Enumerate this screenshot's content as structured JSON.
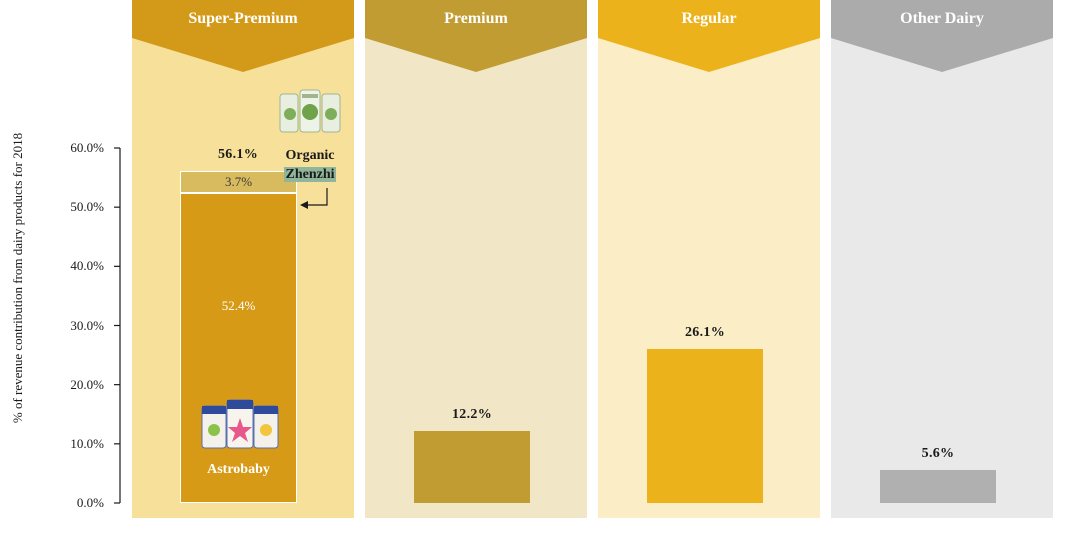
{
  "chart_data": {
    "type": "bar",
    "ylabel": "% of revenue contribution from dairy products for 2018",
    "ylim": [
      0,
      60
    ],
    "yticks": [
      "0.0%",
      "10.0%",
      "20.0%",
      "30.0%",
      "40.0%",
      "50.0%",
      "60.0%"
    ],
    "categories": [
      "Super-Premium",
      "Premium",
      "Regular",
      "Other Dairy"
    ],
    "totals": [
      56.1,
      12.2,
      26.1,
      5.6
    ],
    "total_labels": [
      "56.1%",
      "12.2%",
      "26.1%",
      "5.6%"
    ],
    "stack": {
      "category": "Super-Premium",
      "segments": [
        {
          "name": "Astrobaby",
          "value": 52.4,
          "label": "52.4%"
        },
        {
          "name": "Organic Zhenzhi",
          "value": 3.7,
          "label": "3.7%"
        }
      ]
    },
    "colors": {
      "headers": [
        "#d39a19",
        "#c09c32",
        "#ebb21c",
        "#ababab"
      ],
      "backgrounds": [
        "#f7e19a",
        "#f1e6c5",
        "#fbedc5",
        "#e9e9e9"
      ],
      "bars": [
        "#d69a16",
        "#c19c33",
        "#ebb21c",
        "#b0b0b0"
      ],
      "zhenzhi_segment": "#d8bb5e"
    }
  },
  "brands": {
    "astrobaby_name": "Astrobaby",
    "astrobaby_icon": "formula-cans-icon",
    "zhenzhi_line1": "Organic",
    "zhenzhi_line2": "Zhenzhi",
    "zhenzhi_icon": "organic-cans-icon"
  }
}
